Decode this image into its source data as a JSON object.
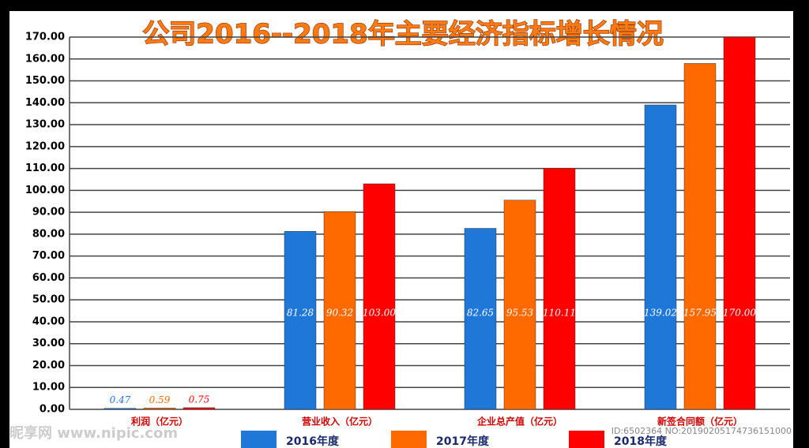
{
  "chart_data": {
    "type": "bar",
    "title": "公司2016--2018年主要经济指标增长情况",
    "categories": [
      "利润（亿元）",
      "营业收入（亿元）",
      "企业总产值（亿元）",
      "新签合同额（亿元）"
    ],
    "series": [
      {
        "name": "2016年度",
        "color": "#1f77d8",
        "values": [
          0.47,
          81.28,
          82.65,
          139.02
        ],
        "value_labels": [
          "0.47",
          "81.28",
          "82.65",
          "139.02"
        ]
      },
      {
        "name": "2017年度",
        "color": "#ff6a00",
        "values": [
          0.59,
          90.32,
          95.53,
          157.95
        ],
        "value_labels": [
          "0.59",
          "90.32",
          "95.53",
          "157.95"
        ]
      },
      {
        "name": "2018年度",
        "color": "#ff0000",
        "values": [
          0.75,
          103.0,
          110.11,
          170.0
        ],
        "value_labels": [
          "0.75",
          "103.00",
          "110.11",
          "170.00"
        ]
      }
    ],
    "ylim": [
      0,
      170
    ],
    "yticks": [
      {
        "value": 0,
        "label": "0.00"
      },
      {
        "value": 10,
        "label": "10.00"
      },
      {
        "value": 20,
        "label": "20.00"
      },
      {
        "value": 30,
        "label": "30.00"
      },
      {
        "value": 40,
        "label": "40.00"
      },
      {
        "value": 50,
        "label": "50.00"
      },
      {
        "value": 60,
        "label": "60.00"
      },
      {
        "value": 70,
        "label": "70.00"
      },
      {
        "value": 80,
        "label": "80.00"
      },
      {
        "value": 90,
        "label": "90.00"
      },
      {
        "value": 100,
        "label": "100.00"
      },
      {
        "value": 110,
        "label": "110.00"
      },
      {
        "value": 120,
        "label": "120.00"
      },
      {
        "value": 130,
        "label": "130.00"
      },
      {
        "value": 140,
        "label": "140.00"
      },
      {
        "value": 150,
        "label": "150.00"
      },
      {
        "value": 160,
        "label": "160.00"
      },
      {
        "value": 170,
        "label": "170.00"
      }
    ],
    "grid": true,
    "legend": "bottom"
  },
  "watermark": {
    "site": "昵享网 www.nipic.com",
    "id": "ID:6502364 NO:20190205174736151000"
  }
}
